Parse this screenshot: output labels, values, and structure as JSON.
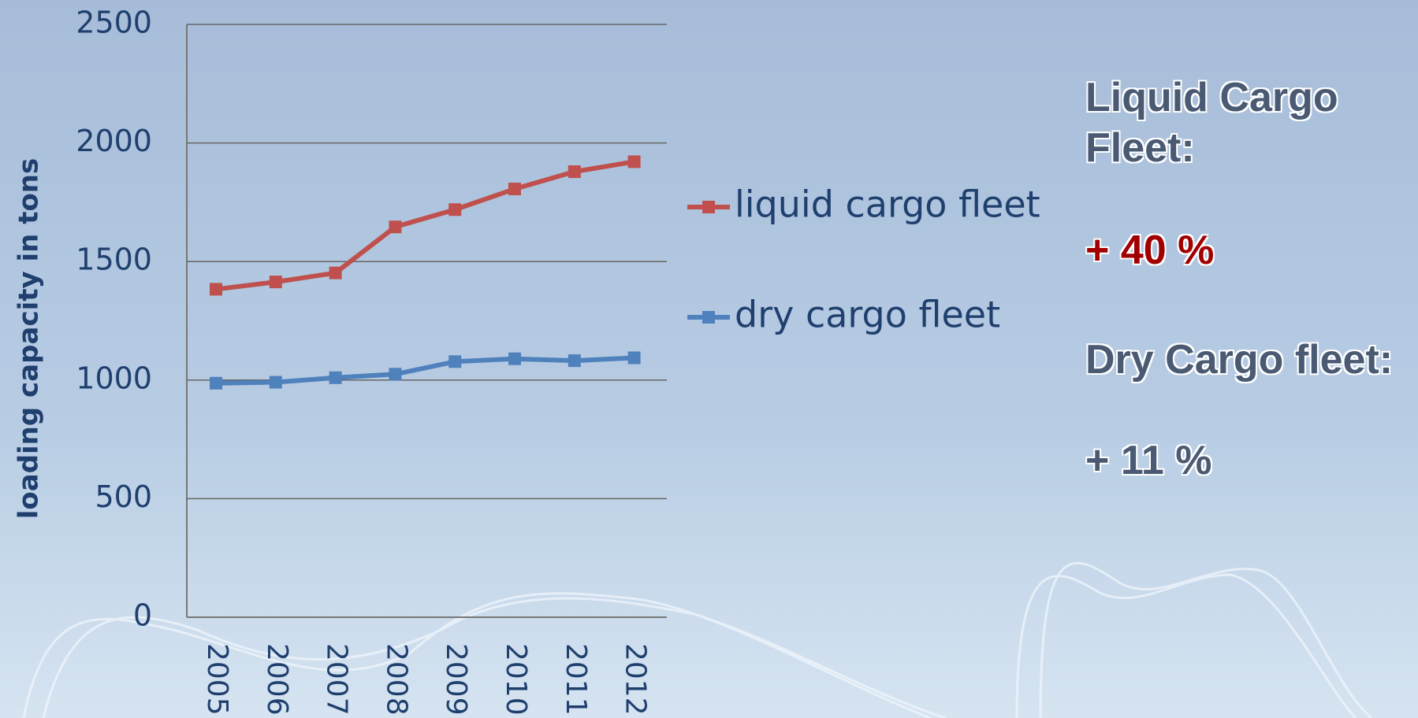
{
  "chart_data": {
    "type": "line",
    "y_label": "loading capacity in tons",
    "categories": [
      "2005",
      "2006",
      "2007",
      "2008",
      "2009",
      "2010",
      "2011",
      "2012"
    ],
    "series": [
      {
        "name": "liquid cargo fleet",
        "color": "#c0504d",
        "values": [
          1383,
          1414,
          1452,
          1646,
          1719,
          1806,
          1879,
          1921
        ]
      },
      {
        "name": "dry cargo fleet",
        "color": "#4f81bd",
        "values": [
          987,
          991,
          1010,
          1025,
          1078,
          1090,
          1082,
          1094
        ]
      }
    ],
    "ylim": [
      0,
      2500
    ],
    "yticks": [
      0,
      500,
      1000,
      1500,
      2000,
      2500
    ],
    "grid": true,
    "annotations": [
      {
        "text": "Liquid Cargo Fleet:",
        "color": "#4a5a72"
      },
      {
        "text": "+ 40 %",
        "color": "#a00000"
      },
      {
        "text": "Dry Cargo fleet:",
        "color": "#4a5a72"
      },
      {
        "text": "+ 11 %",
        "color": "#4a5a72"
      }
    ]
  }
}
